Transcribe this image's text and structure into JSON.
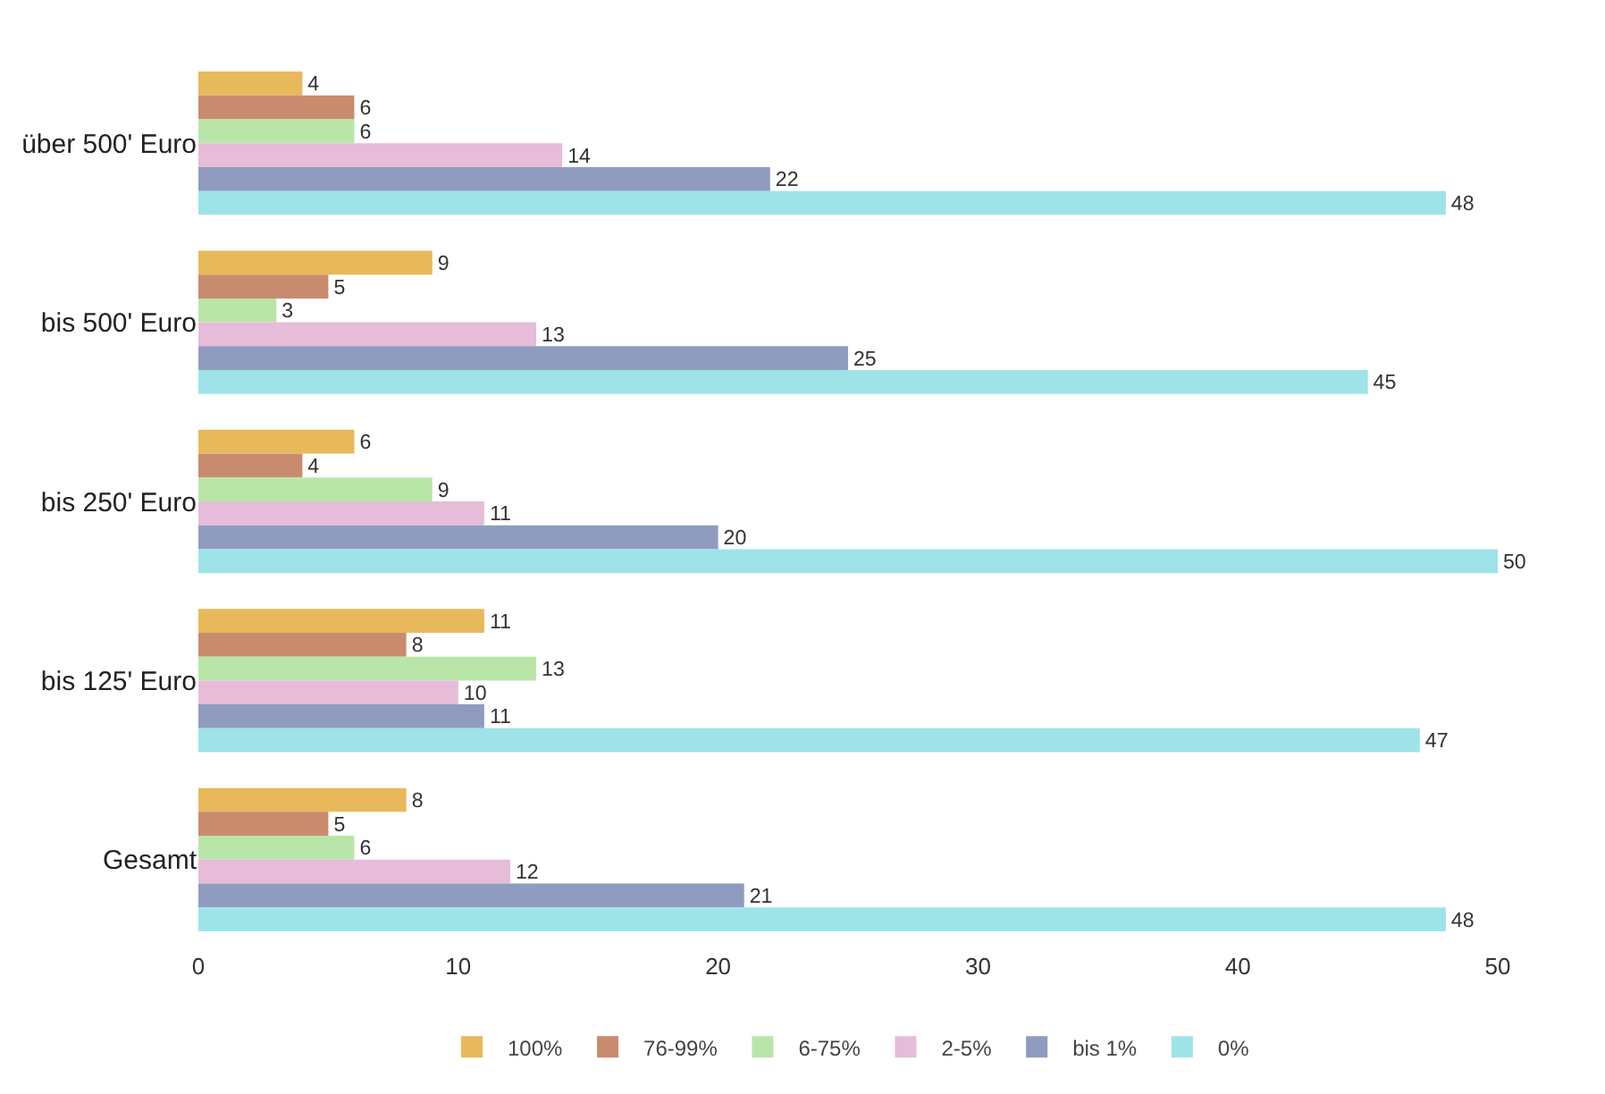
{
  "chart_data": {
    "type": "bar",
    "orientation": "horizontal",
    "categories": [
      "über 500' Euro",
      "bis 500' Euro",
      "bis 250' Euro",
      "bis 125' Euro",
      "Gesamt"
    ],
    "series": [
      {
        "name": "100%",
        "color": "#e8b95a",
        "values": [
          4,
          9,
          6,
          11,
          8
        ]
      },
      {
        "name": "76-99%",
        "color": "#c98b6e",
        "values": [
          6,
          5,
          4,
          8,
          5
        ]
      },
      {
        "name": "6-75%",
        "color": "#b9e6a8",
        "values": [
          6,
          3,
          9,
          13,
          6
        ]
      },
      {
        "name": "2-5%",
        "color": "#e6bcd8",
        "values": [
          14,
          13,
          11,
          10,
          12
        ]
      },
      {
        "name": "bis 1%",
        "color": "#8f9cc0",
        "values": [
          22,
          25,
          20,
          11,
          21
        ]
      },
      {
        "name": "0%",
        "color": "#9ee3e8",
        "values": [
          48,
          45,
          50,
          47,
          48
        ]
      }
    ],
    "xlim": [
      0,
      50
    ],
    "xticks": [
      0,
      10,
      20,
      30,
      40,
      50
    ],
    "data_labels": true,
    "grid": false,
    "legend": "bottom"
  }
}
